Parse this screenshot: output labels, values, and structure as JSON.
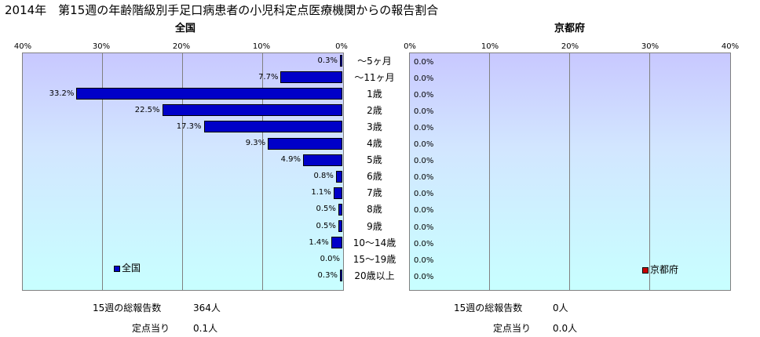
{
  "title": "2014年　第15週の年齢階級別手足口病患者の小児科定点医療機関からの報告割合",
  "chart_data": [
    {
      "type": "bar",
      "title": "全国",
      "orientation": "horizontal",
      "direction": "right-to-left",
      "xlim": [
        0,
        40
      ],
      "x_ticks": [
        "40%",
        "30%",
        "20%",
        "10%",
        "0%"
      ],
      "categories": [
        "～5ヶ月",
        "～11ヶ月",
        "1歳",
        "2歳",
        "3歳",
        "4歳",
        "5歳",
        "6歳",
        "7歳",
        "8歳",
        "9歳",
        "10～14歳",
        "15～19歳",
        "20歳以上"
      ],
      "series": [
        {
          "name": "全国",
          "color": "#0000c8",
          "values": [
            0.3,
            7.7,
            33.2,
            22.5,
            17.3,
            9.3,
            4.9,
            0.8,
            1.1,
            0.5,
            0.5,
            1.4,
            0.0,
            0.3
          ],
          "labels": [
            "0.3%",
            "7.7%",
            "33.2%",
            "22.5%",
            "17.3%",
            "9.3%",
            "4.9%",
            "0.8%",
            "1.1%",
            "0.5%",
            "0.5%",
            "1.4%",
            "0.0%",
            "0.3%"
          ]
        }
      ],
      "grid": true,
      "legend": "bottom-left"
    },
    {
      "type": "bar",
      "title": "京都府",
      "orientation": "horizontal",
      "direction": "left-to-right",
      "xlim": [
        0,
        40
      ],
      "x_ticks": [
        "0%",
        "10%",
        "20%",
        "30%",
        "40%"
      ],
      "categories": [
        "～5ヶ月",
        "～11ヶ月",
        "1歳",
        "2歳",
        "3歳",
        "4歳",
        "5歳",
        "6歳",
        "7歳",
        "8歳",
        "9歳",
        "10～14歳",
        "15～19歳",
        "20歳以上"
      ],
      "series": [
        {
          "name": "京都府",
          "color": "#c80000",
          "values": [
            0,
            0,
            0,
            0,
            0,
            0,
            0,
            0,
            0,
            0,
            0,
            0,
            0,
            0
          ],
          "labels": [
            "0.0%",
            "0.0%",
            "0.0%",
            "0.0%",
            "0.0%",
            "0.0%",
            "0.0%",
            "0.0%",
            "0.0%",
            "0.0%",
            "0.0%",
            "0.0%",
            "0.0%",
            "0.0%"
          ]
        }
      ],
      "grid": true,
      "legend": "bottom-right"
    }
  ],
  "stats": {
    "national": {
      "total_label": "15週の総報告数",
      "total_value": "364人",
      "per_label": "定点当り",
      "per_value": "0.1人"
    },
    "kyoto": {
      "total_label": "15週の総報告数",
      "total_value": "0人",
      "per_label": "定点当り",
      "per_value": "0.0人"
    }
  }
}
